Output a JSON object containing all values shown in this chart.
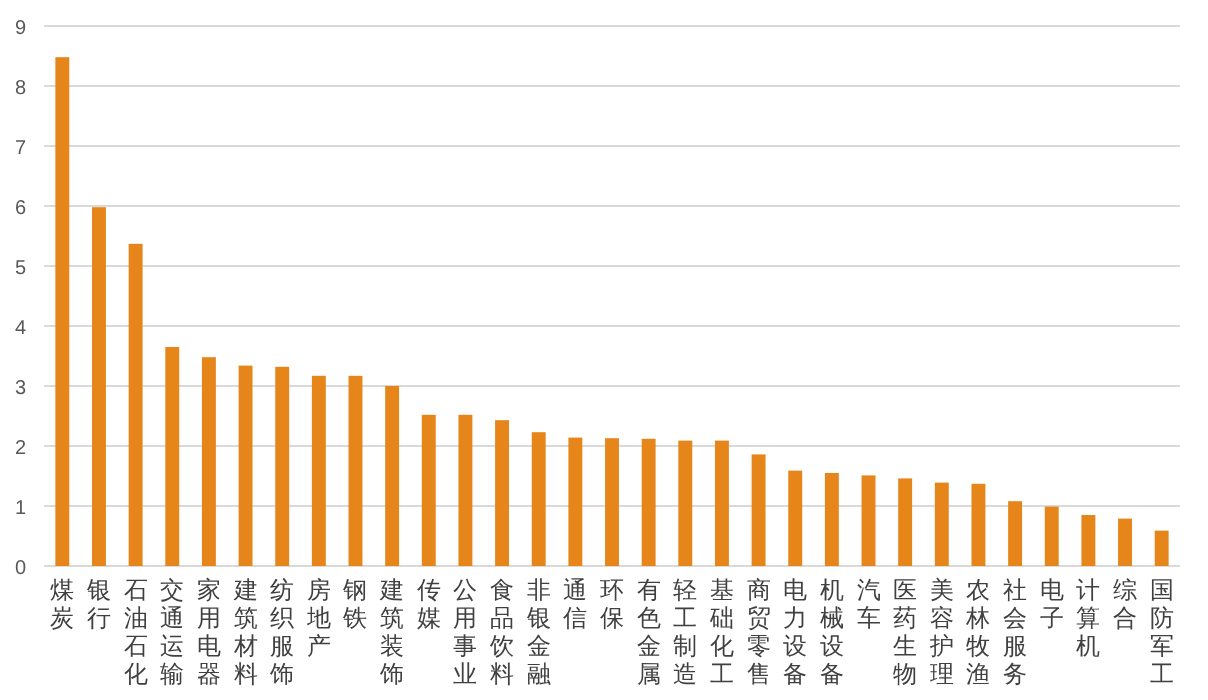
{
  "chart_data": {
    "type": "bar",
    "categories": [
      "煤炭",
      "银行",
      "石油石化",
      "交通运输",
      "家用电器",
      "建筑材料",
      "纺织服饰",
      "房地产",
      "钢铁",
      "建筑装饰",
      "传媒",
      "公用事业",
      "食品饮料",
      "非银金融",
      "通信",
      "环保",
      "有色金属",
      "轻工制造",
      "基础化工",
      "商贸零售",
      "电力设备",
      "机械设备",
      "汽车",
      "医药生物",
      "美容护理",
      "农林牧渔",
      "社会服务",
      "电子",
      "计算机",
      "综合",
      "国防军工"
    ],
    "values": [
      8.48,
      5.98,
      5.37,
      3.65,
      3.48,
      3.34,
      3.32,
      3.17,
      3.17,
      3.0,
      2.52,
      2.52,
      2.43,
      2.23,
      2.14,
      2.13,
      2.12,
      2.09,
      2.09,
      1.86,
      1.59,
      1.55,
      1.51,
      1.46,
      1.39,
      1.37,
      1.08,
      0.99,
      0.85,
      0.79,
      0.59
    ],
    "color": "#e6861a",
    "ylim": [
      0,
      9
    ],
    "yticks": [
      0,
      1,
      2,
      3,
      4,
      5,
      6,
      7,
      8,
      9
    ],
    "grid": "y"
  }
}
